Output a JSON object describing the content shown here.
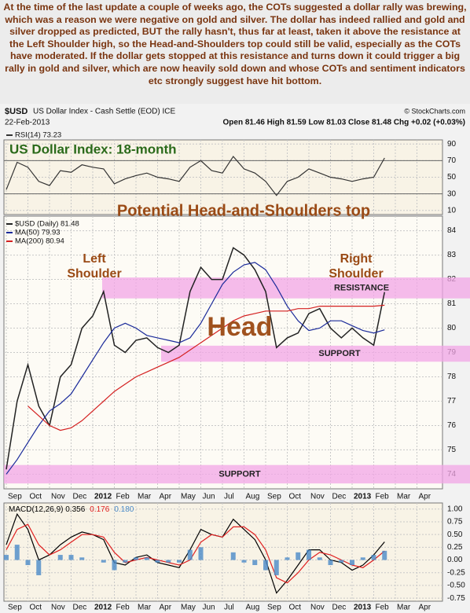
{
  "text": "At the time of the last update a couple of weeks ago, the COTs suggested a dollar rally was brewing, which was a reason we were negative on gold and silver. The dollar has indeed rallied and gold and silver dropped as predicted, BUT the rally hasn't, thus far at least, taken it above the resistance at the Left Shoulder high, so the Head-and-Shoulders top could still be valid, especially as the COTs have moderated. If the dollar gets stopped at this resistance and turns down it could trigger a big rally in gold and silver, which are now heavily sold down and whose COTs and sentiment indicators etc strongly suggest have hit bottom.",
  "header": {
    "symbol": "$USD",
    "name": "US Dollar Index - Cash Settle (EOD) ICE",
    "credit": "© StockCharts.com",
    "date": "22-Feb-2013",
    "quote": "Open 81.46 High 81.59 Low 81.03 Close 81.48 Chg +0.02 (+0.03%)"
  },
  "x_axis": {
    "categories": [
      "Sep",
      null,
      "Oct",
      null,
      "Nov",
      null,
      "Dec",
      null,
      "2012",
      null,
      "Feb",
      null,
      "Mar",
      null,
      "Apr",
      null,
      "May",
      null,
      "Jun",
      null,
      "Jul",
      null,
      "Aug",
      null,
      "Sep",
      null,
      "Oct",
      null,
      "Nov",
      null,
      "Dec",
      null,
      "2013",
      null,
      "Feb",
      null,
      "Mar",
      null,
      "Apr",
      null
    ]
  },
  "chart_data": [
    {
      "type": "line",
      "title": "US Dollar Index: 18-month",
      "series": [
        {
          "name": "RSI(14) 73.23",
          "color": "#333333",
          "values": [
            35,
            68,
            62,
            45,
            40,
            58,
            56,
            65,
            62,
            60,
            42,
            48,
            52,
            55,
            50,
            48,
            45,
            62,
            70,
            58,
            55,
            75,
            60,
            55,
            45,
            28,
            45,
            50,
            60,
            55,
            50,
            48,
            45,
            48,
            50,
            73.23,
            null,
            null,
            null,
            null
          ]
        }
      ],
      "ylim": [
        5,
        95
      ],
      "yticks": [
        10,
        30,
        50,
        70,
        90
      ],
      "reference_lines": [
        70,
        30
      ],
      "grid": true
    },
    {
      "type": "line",
      "title": "Potential Head-and-Shoulders top",
      "series": [
        {
          "name": "$USD (Daily) 81.48",
          "color": "#222222",
          "values": [
            74.2,
            77.0,
            78.5,
            76.8,
            76.0,
            78.0,
            78.5,
            80.0,
            80.5,
            81.5,
            79.3,
            79.0,
            79.5,
            79.6,
            79.2,
            79.0,
            79.3,
            81.5,
            82.5,
            82.0,
            82.0,
            83.3,
            83.0,
            82.4,
            81.5,
            79.2,
            79.6,
            79.8,
            80.6,
            80.8,
            80.0,
            79.6,
            80.0,
            79.6,
            79.3,
            81.48,
            null,
            null,
            null,
            null
          ]
        },
        {
          "name": "MA(50) 79.93",
          "color": "#1a2a9a",
          "values": [
            74.0,
            74.6,
            75.3,
            76.0,
            76.6,
            76.9,
            77.3,
            78.0,
            78.7,
            79.4,
            80.0,
            80.2,
            80.0,
            79.7,
            79.6,
            79.5,
            79.4,
            79.6,
            80.2,
            81.0,
            81.8,
            82.3,
            82.6,
            82.7,
            82.4,
            81.7,
            80.9,
            80.3,
            79.9,
            80.0,
            80.3,
            80.3,
            80.1,
            79.9,
            79.8,
            79.93,
            null,
            null,
            null,
            null
          ]
        },
        {
          "name": "MA(200) 80.94",
          "color": "#d42020",
          "values": [
            null,
            null,
            76.8,
            76.4,
            76.0,
            75.8,
            75.9,
            76.2,
            76.6,
            77.0,
            77.4,
            77.7,
            78.0,
            78.2,
            78.4,
            78.6,
            78.8,
            79.1,
            79.4,
            79.7,
            80.0,
            80.3,
            80.5,
            80.6,
            80.7,
            80.7,
            80.7,
            80.8,
            80.8,
            80.9,
            80.9,
            80.9,
            80.9,
            80.9,
            80.9,
            80.94,
            null,
            null,
            null,
            null
          ]
        }
      ],
      "annotations": [
        "Left Shoulder",
        "Right Shoulder",
        "Head"
      ],
      "bands": [
        {
          "label": "RESISTANCE",
          "range": [
            81.35,
            81.95
          ]
        },
        {
          "label": "SUPPORT",
          "range": [
            78.75,
            79.15
          ]
        },
        {
          "label": "SUPPORT",
          "range": [
            73.75,
            74.25
          ]
        }
      ],
      "ylim": [
        73.4,
        84.6
      ],
      "yticks": [
        74,
        75,
        76,
        77,
        78,
        79,
        80,
        81,
        82,
        83,
        84
      ],
      "grid": true
    },
    {
      "type": "line",
      "series": [
        {
          "name": "MACD(12,26,9) 0.356",
          "color": "#000000",
          "values": [
            0.3,
            0.9,
            0.6,
            0.0,
            0.1,
            0.3,
            0.45,
            0.55,
            0.5,
            0.4,
            -0.05,
            -0.1,
            0.05,
            0.1,
            -0.05,
            -0.1,
            -0.15,
            0.2,
            0.6,
            0.5,
            0.45,
            0.8,
            0.6,
            0.4,
            0.0,
            -0.65,
            -0.4,
            -0.1,
            0.2,
            0.2,
            0.0,
            -0.05,
            -0.2,
            -0.1,
            0.1,
            0.356,
            null,
            null,
            null,
            null
          ]
        },
        {
          "name": "0.176",
          "color": "#e02020",
          "values": [
            0.2,
            0.6,
            0.7,
            0.3,
            0.1,
            0.2,
            0.35,
            0.5,
            0.5,
            0.45,
            0.15,
            -0.05,
            0.0,
            0.05,
            0.0,
            -0.05,
            -0.1,
            0.0,
            0.35,
            0.5,
            0.45,
            0.65,
            0.65,
            0.5,
            0.2,
            -0.35,
            -0.45,
            -0.25,
            0.0,
            0.15,
            0.1,
            0.0,
            -0.1,
            -0.15,
            0.0,
            0.176,
            null,
            null,
            null,
            null
          ]
        },
        {
          "name": "0.180",
          "color": "#4a8ac8",
          "kind": "bar",
          "values": [
            0.1,
            0.3,
            -0.1,
            -0.3,
            0,
            0.1,
            0.1,
            0.05,
            0,
            -0.05,
            -0.2,
            -0.05,
            0.05,
            0.05,
            -0.05,
            -0.05,
            -0.05,
            0.2,
            0.25,
            0,
            0,
            0.15,
            -0.05,
            -0.1,
            -0.2,
            -0.3,
            0.05,
            0.15,
            0.2,
            0.05,
            -0.1,
            -0.05,
            -0.1,
            0.05,
            0.1,
            0.18,
            null,
            null,
            null,
            null
          ]
        }
      ],
      "ylim": [
        -0.81,
        1.12
      ],
      "yticks": [
        {
          "value": 1,
          "label": "1.00"
        },
        {
          "value": 0.75,
          "label": "0.75"
        },
        {
          "value": 0.5,
          "label": "0.50"
        },
        {
          "value": 0.25,
          "label": "0.25"
        },
        {
          "value": 0,
          "label": "0.00"
        },
        {
          "value": -0.25,
          "label": "-0.25"
        },
        {
          "value": -0.5,
          "label": "-0.50"
        },
        {
          "value": -0.75,
          "label": "-0.75"
        }
      ],
      "grid": true
    }
  ]
}
